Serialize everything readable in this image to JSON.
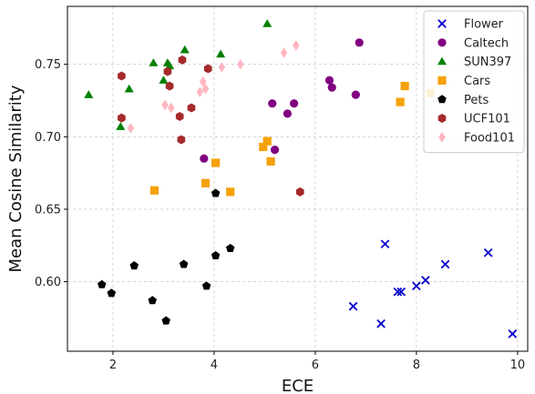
{
  "chart_data": {
    "type": "scatter",
    "xlabel": "ECE",
    "ylabel": "Mean Cosine Similarity",
    "xlim": [
      1.1,
      10.2
    ],
    "ylim": [
      0.552,
      0.79
    ],
    "xticks": [
      2,
      4,
      6,
      8,
      10
    ],
    "yticks": [
      0.6,
      0.65,
      0.7,
      0.75
    ],
    "grid": true,
    "legend_position": "top-right",
    "series": [
      {
        "name": "Flower",
        "marker": "x",
        "color": "#0000cc",
        "points": [
          [
            6.75,
            0.583
          ],
          [
            7.3,
            0.571
          ],
          [
            7.38,
            0.626
          ],
          [
            7.63,
            0.593
          ],
          [
            7.7,
            0.593
          ],
          [
            8.0,
            0.597
          ],
          [
            8.18,
            0.601
          ],
          [
            8.57,
            0.612
          ],
          [
            9.42,
            0.62
          ],
          [
            9.9,
            0.564
          ]
        ]
      },
      {
        "name": "Caltech",
        "marker": "circle",
        "color": "#800080",
        "points": [
          [
            3.8,
            0.685
          ],
          [
            5.15,
            0.723
          ],
          [
            5.2,
            0.691
          ],
          [
            5.45,
            0.716
          ],
          [
            5.58,
            0.723
          ],
          [
            6.28,
            0.739
          ],
          [
            6.33,
            0.734
          ],
          [
            6.8,
            0.729
          ],
          [
            6.87,
            0.765
          ]
        ]
      },
      {
        "name": "SUN397",
        "marker": "triangle",
        "color": "#008000",
        "points": [
          [
            1.52,
            0.729
          ],
          [
            2.15,
            0.707
          ],
          [
            2.32,
            0.733
          ],
          [
            2.8,
            0.751
          ],
          [
            3.0,
            0.739
          ],
          [
            3.08,
            0.751
          ],
          [
            3.12,
            0.749
          ],
          [
            3.42,
            0.76
          ],
          [
            4.13,
            0.757
          ],
          [
            5.05,
            0.778
          ]
        ]
      },
      {
        "name": "Cars",
        "marker": "square",
        "color": "#f5a20a",
        "points": [
          [
            2.82,
            0.663
          ],
          [
            3.83,
            0.668
          ],
          [
            4.03,
            0.682
          ],
          [
            4.32,
            0.662
          ],
          [
            4.97,
            0.693
          ],
          [
            5.05,
            0.697
          ],
          [
            5.12,
            0.683
          ],
          [
            7.68,
            0.724
          ],
          [
            7.77,
            0.735
          ],
          [
            8.28,
            0.73
          ]
        ]
      },
      {
        "name": "Pets",
        "marker": "pentagon",
        "color": "#000000",
        "points": [
          [
            1.78,
            0.598
          ],
          [
            1.97,
            0.592
          ],
          [
            2.42,
            0.611
          ],
          [
            2.78,
            0.587
          ],
          [
            3.05,
            0.573
          ],
          [
            3.4,
            0.612
          ],
          [
            3.85,
            0.597
          ],
          [
            4.03,
            0.618
          ],
          [
            4.03,
            0.661
          ],
          [
            4.32,
            0.623
          ]
        ]
      },
      {
        "name": "UCF101",
        "marker": "hexagon",
        "color": "#a52a2a",
        "points": [
          [
            2.17,
            0.742
          ],
          [
            2.17,
            0.713
          ],
          [
            3.08,
            0.745
          ],
          [
            3.12,
            0.735
          ],
          [
            3.32,
            0.714
          ],
          [
            3.35,
            0.698
          ],
          [
            3.37,
            0.753
          ],
          [
            3.55,
            0.72
          ],
          [
            3.88,
            0.747
          ],
          [
            5.7,
            0.662
          ]
        ]
      },
      {
        "name": "Food101",
        "marker": "diamond",
        "color": "#ffb6c1",
        "points": [
          [
            2.35,
            0.706
          ],
          [
            3.03,
            0.722
          ],
          [
            3.15,
            0.72
          ],
          [
            3.72,
            0.731
          ],
          [
            3.78,
            0.738
          ],
          [
            3.83,
            0.733
          ],
          [
            4.15,
            0.748
          ],
          [
            4.52,
            0.75
          ],
          [
            5.38,
            0.758
          ],
          [
            5.62,
            0.763
          ]
        ]
      }
    ]
  }
}
